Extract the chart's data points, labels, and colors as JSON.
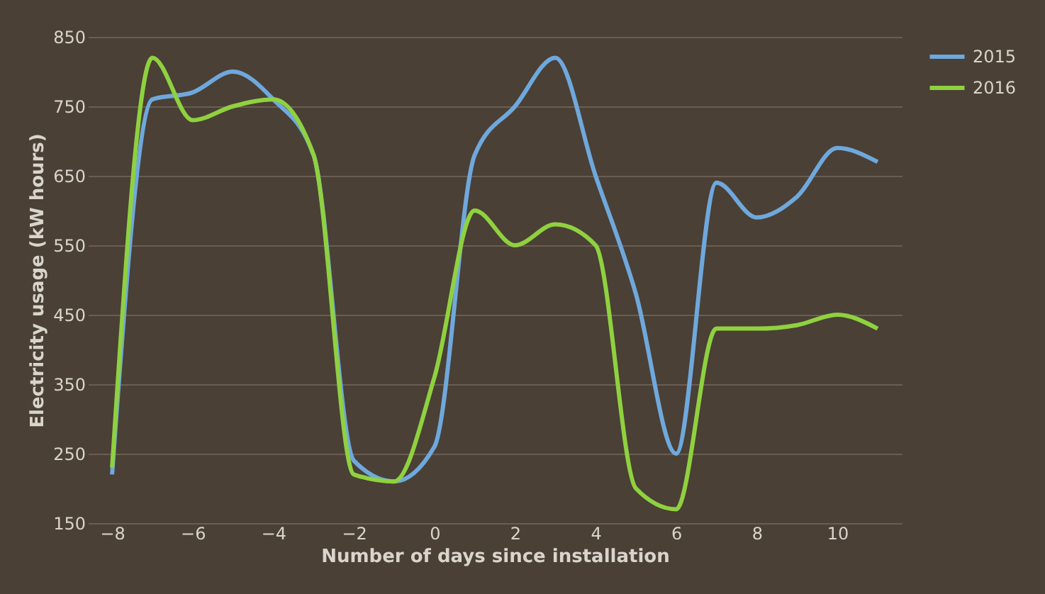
{
  "chart_data": {
    "type": "line",
    "xlabel": "Number of days since installation",
    "ylabel": "Electricity usage (kW hours)",
    "x": [
      -8,
      -7,
      -6,
      -5,
      -4,
      -3,
      -2,
      -1,
      0,
      1,
      2,
      3,
      4,
      5,
      6,
      7,
      8,
      9,
      10,
      11
    ],
    "series": [
      {
        "name": "2015",
        "color": "#6fa8dc",
        "values": [
          220,
          760,
          770,
          800,
          760,
          680,
          240,
          210,
          260,
          680,
          750,
          820,
          650,
          480,
          250,
          640,
          590,
          620,
          690,
          670
        ]
      },
      {
        "name": "2016",
        "color": "#8fd13f",
        "values": [
          230,
          820,
          730,
          750,
          760,
          680,
          220,
          210,
          360,
          600,
          550,
          580,
          550,
          200,
          170,
          430,
          430,
          435,
          450,
          430
        ]
      }
    ],
    "xlim": [
      -8.6,
      11.6
    ],
    "xticks": [
      -8,
      -6,
      -4,
      -2,
      0,
      2,
      4,
      6,
      8,
      10
    ],
    "ylim": [
      150,
      850
    ],
    "yticks": [
      150,
      250,
      350,
      450,
      550,
      650,
      750,
      850
    ],
    "grid": "y",
    "legend": "right",
    "marker": "none",
    "line_style": "solid"
  }
}
